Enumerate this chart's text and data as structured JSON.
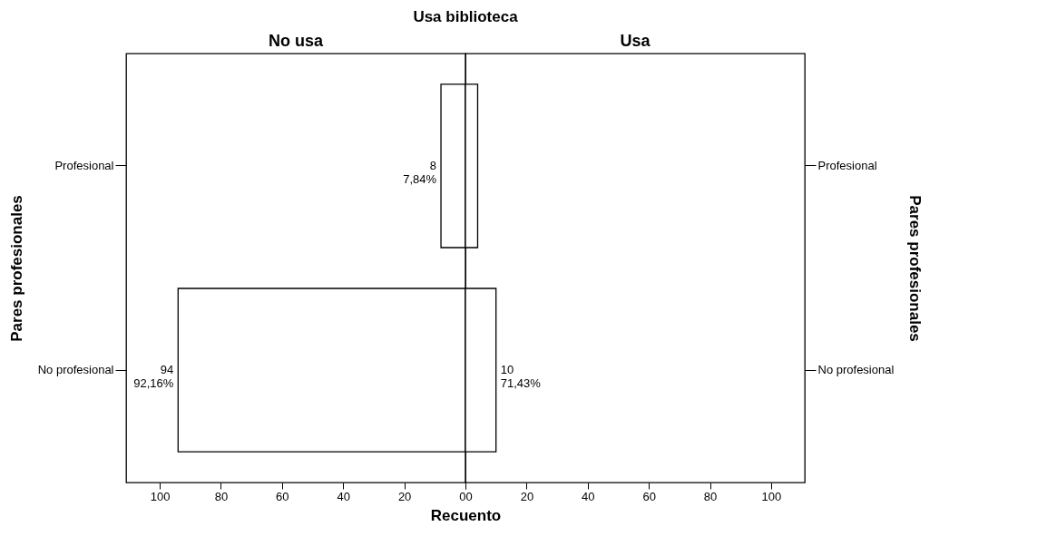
{
  "chart_data": [
    {
      "type": "bar",
      "orientation": "horizontal",
      "title": "No usa",
      "annotations": [
        "Usa biblioteca"
      ],
      "xlabel": "Recuento",
      "ylabel": "Pares profesionales",
      "categories": [
        "Profesional",
        "No profesional"
      ],
      "series": [
        {
          "color": "#ffffff",
          "values": [
            8,
            94
          ],
          "value_labels": [
            "8\n7,84%",
            "94\n92,16%"
          ]
        }
      ],
      "xlim": [
        111,
        0
      ],
      "xticks": [
        100,
        80,
        60,
        40,
        20,
        0
      ],
      "grid": false,
      "legend": false
    },
    {
      "type": "bar",
      "orientation": "horizontal",
      "title": "Usa",
      "y2label": "Pares profesionales",
      "categories": [
        "Profesional",
        "No profesional"
      ],
      "series": [
        {
          "color": "#ffffff",
          "values": [
            4,
            10
          ],
          "value_labels": [
            null,
            "10\n71,43%"
          ]
        }
      ],
      "xlim": [
        0,
        111
      ],
      "xticks": [
        0,
        20,
        40,
        60,
        80,
        100
      ],
      "grid": false,
      "legend": false
    }
  ]
}
